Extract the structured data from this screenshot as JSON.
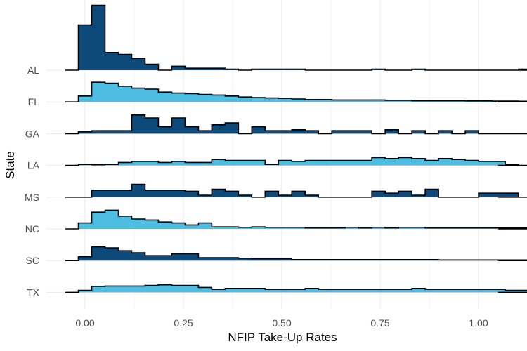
{
  "chart_data": {
    "type": "ridgeline-histogram",
    "xlabel": "NFIP Take-Up Rates",
    "ylabel": "State",
    "xlim": [
      -0.05,
      1.05
    ],
    "x_ticks": [
      "0.00",
      "0.25",
      "0.50",
      "0.75",
      "1.00"
    ],
    "x_tick_values": [
      0,
      0.25,
      0.5,
      0.75,
      1.0
    ],
    "grid": true,
    "bin_width": 0.0339,
    "bin_start": -0.0169,
    "colors": {
      "dark": "#0d4a7a",
      "light": "#4dbde2",
      "outline": "#000000",
      "grid": "#ebebeb"
    },
    "series": [
      {
        "name": "AL",
        "color": "dark",
        "values": [
          2.3,
          3.3,
          0.9,
          0.8,
          0.6,
          0.3,
          0,
          0.2,
          0.1,
          0.1,
          0.1,
          0.05,
          0,
          0.05,
          0.05,
          0.05,
          0.05,
          0,
          0,
          0,
          0,
          0,
          0.05,
          0,
          0,
          0.05,
          0,
          0,
          0,
          0,
          0,
          0,
          0,
          0.05,
          0
        ]
      },
      {
        "name": "FL",
        "color": "light",
        "values": [
          0.3,
          1.0,
          0.95,
          0.8,
          0.7,
          0.65,
          0.5,
          0.45,
          0.42,
          0.38,
          0.35,
          0.3,
          0.25,
          0.22,
          0.2,
          0.18,
          0.15,
          0.12,
          0.12,
          0.1,
          0.1,
          0.1,
          0.1,
          0.08,
          0.08,
          0.06,
          0.06,
          0.06,
          0.06,
          0.05,
          0.05,
          0.04,
          0.04,
          0.03,
          0.03
        ]
      },
      {
        "name": "GA",
        "color": "dark",
        "values": [
          0.1,
          0.15,
          0.15,
          0.15,
          0.95,
          0.8,
          0.35,
          0.8,
          0.35,
          0.15,
          0.45,
          0.55,
          0,
          0.35,
          0.15,
          0.15,
          0.2,
          0.15,
          0,
          0.15,
          0.15,
          0.15,
          0,
          0.2,
          0,
          0.15,
          0,
          0.15,
          0,
          0.15,
          0,
          0,
          0,
          0,
          0
        ]
      },
      {
        "name": "LA",
        "color": "light",
        "values": [
          0.05,
          0.03,
          0.05,
          0.15,
          0.2,
          0.2,
          0.15,
          0.2,
          0.15,
          0.15,
          0.3,
          0.25,
          0.25,
          0.25,
          0.05,
          0.25,
          0.2,
          0.25,
          0.25,
          0.25,
          0.25,
          0.25,
          0.4,
          0.35,
          0.4,
          0.35,
          0.25,
          0.35,
          0.3,
          0.25,
          0.2,
          0.2,
          0.05,
          0,
          0
        ]
      },
      {
        "name": "MS",
        "color": "dark",
        "values": [
          0,
          0.35,
          0.35,
          0.35,
          0.65,
          0.35,
          0.35,
          0.35,
          0.3,
          0.1,
          0.4,
          0.3,
          0.1,
          0,
          0.3,
          0.1,
          0.3,
          0.1,
          0,
          0,
          0,
          0,
          0.3,
          0.2,
          0.3,
          0.1,
          0.4,
          0,
          0,
          0,
          0.2,
          0.2,
          0.2,
          0,
          0
        ]
      },
      {
        "name": "NC",
        "color": "light",
        "values": [
          0.3,
          0.85,
          0.95,
          0.65,
          0.5,
          0.45,
          0.35,
          0.3,
          0.2,
          0.3,
          0.1,
          0.1,
          0.08,
          0.1,
          0.08,
          0.08,
          0.08,
          0.05,
          0.05,
          0.05,
          0.08,
          0.05,
          0.08,
          0.05,
          0.08,
          0.08,
          0.05,
          0.05,
          0.05,
          0.05,
          0.05,
          0.05,
          0.05,
          0.05,
          0
        ]
      },
      {
        "name": "SC",
        "color": "dark",
        "values": [
          0.2,
          0.7,
          0.65,
          0.5,
          0.4,
          0.25,
          0.25,
          0.35,
          0.35,
          0.15,
          0.15,
          0.15,
          0.12,
          0.1,
          0.1,
          0.1,
          0.05,
          0.05,
          0.05,
          0.05,
          0.05,
          0.05,
          0.05,
          0.05,
          0.05,
          0.05,
          0.05,
          0.03,
          0.03,
          0.03,
          0.03,
          0.03,
          0.03,
          0.03,
          0
        ]
      },
      {
        "name": "TX",
        "color": "light",
        "values": [
          0.1,
          0.3,
          0.32,
          0.32,
          0.32,
          0.35,
          0.38,
          0.35,
          0.35,
          0.25,
          0.15,
          0.2,
          0.2,
          0.2,
          0.15,
          0.15,
          0.15,
          0.2,
          0.15,
          0.15,
          0.15,
          0.15,
          0.15,
          0.15,
          0.15,
          0.2,
          0.15,
          0.15,
          0.15,
          0.15,
          0.15,
          0.15,
          0.1,
          0.1,
          0
        ]
      }
    ]
  }
}
